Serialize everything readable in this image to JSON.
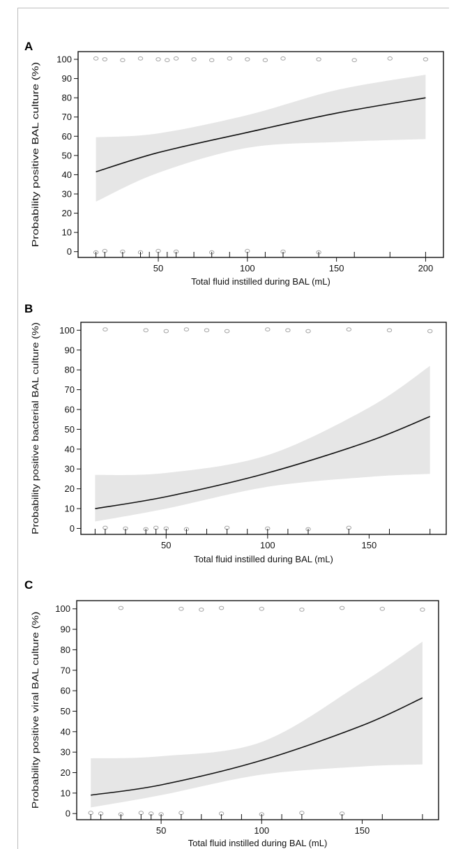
{
  "chart_data": [
    {
      "panel": "A",
      "type": "line",
      "ylabel": "Probability positive BAL culture (%)",
      "xlabel": "Total fluid instilled during BAL (mL)",
      "xlim": [
        5,
        210
      ],
      "ylim": [
        -3,
        104
      ],
      "xticks": [
        50,
        100,
        150,
        200
      ],
      "yticks": [
        0,
        10,
        20,
        30,
        40,
        50,
        60,
        70,
        80,
        90,
        100
      ],
      "rug_x": [
        15,
        20,
        30,
        40,
        45,
        50,
        55,
        60,
        70,
        80,
        90,
        100,
        110,
        120,
        140,
        160,
        180,
        200
      ],
      "fit": {
        "x": [
          15,
          50,
          100,
          150,
          200
        ],
        "y": [
          41.5,
          51.5,
          62,
          72,
          80
        ]
      },
      "ci_upper": {
        "x": [
          15,
          50,
          100,
          150,
          200
        ],
        "y": [
          59.5,
          61.5,
          71,
          84,
          92
        ]
      },
      "ci_lower": {
        "x": [
          15,
          50,
          100,
          150,
          200
        ],
        "y": [
          26,
          41,
          54,
          57,
          58.5
        ]
      },
      "observed": [
        {
          "x": 15,
          "y": 100
        },
        {
          "x": 20,
          "y": 100
        },
        {
          "x": 30,
          "y": 100
        },
        {
          "x": 40,
          "y": 100
        },
        {
          "x": 50,
          "y": 100
        },
        {
          "x": 55,
          "y": 100
        },
        {
          "x": 60,
          "y": 100
        },
        {
          "x": 70,
          "y": 100
        },
        {
          "x": 80,
          "y": 100
        },
        {
          "x": 90,
          "y": 100
        },
        {
          "x": 100,
          "y": 100
        },
        {
          "x": 110,
          "y": 100
        },
        {
          "x": 120,
          "y": 100
        },
        {
          "x": 140,
          "y": 100
        },
        {
          "x": 160,
          "y": 100
        },
        {
          "x": 180,
          "y": 100
        },
        {
          "x": 200,
          "y": 100
        },
        {
          "x": 15,
          "y": 0
        },
        {
          "x": 20,
          "y": 0
        },
        {
          "x": 30,
          "y": 0
        },
        {
          "x": 40,
          "y": 0
        },
        {
          "x": 50,
          "y": 0
        },
        {
          "x": 60,
          "y": 0
        },
        {
          "x": 80,
          "y": 0
        },
        {
          "x": 100,
          "y": 0
        },
        {
          "x": 120,
          "y": 0
        },
        {
          "x": 140,
          "y": 0
        }
      ]
    },
    {
      "panel": "B",
      "type": "line",
      "ylabel": "Probability positive bacterial BAL culture (%)",
      "xlabel": "Total fluid instilled during BAL (mL)",
      "xlim": [
        8,
        188
      ],
      "ylim": [
        -3,
        104
      ],
      "xticks": [
        50,
        100,
        150
      ],
      "yticks": [
        0,
        10,
        20,
        30,
        40,
        50,
        60,
        70,
        80,
        90,
        100
      ],
      "rug_x": [
        15,
        20,
        30,
        40,
        45,
        50,
        60,
        70,
        80,
        90,
        100,
        110,
        120,
        140,
        160,
        180
      ],
      "fit": {
        "x": [
          15,
          50,
          100,
          150,
          180
        ],
        "y": [
          10,
          16,
          28,
          44,
          56.5
        ]
      },
      "ci_upper": {
        "x": [
          15,
          50,
          100,
          150,
          180
        ],
        "y": [
          27,
          28,
          37,
          61,
          82
        ]
      },
      "ci_lower": {
        "x": [
          15,
          50,
          100,
          150,
          180
        ],
        "y": [
          3.5,
          10,
          21,
          26,
          27.5
        ]
      },
      "observed": [
        {
          "x": 20,
          "y": 100
        },
        {
          "x": 40,
          "y": 100
        },
        {
          "x": 50,
          "y": 100
        },
        {
          "x": 60,
          "y": 100
        },
        {
          "x": 70,
          "y": 100
        },
        {
          "x": 80,
          "y": 100
        },
        {
          "x": 100,
          "y": 100
        },
        {
          "x": 110,
          "y": 100
        },
        {
          "x": 120,
          "y": 100
        },
        {
          "x": 140,
          "y": 100
        },
        {
          "x": 160,
          "y": 100
        },
        {
          "x": 180,
          "y": 100
        },
        {
          "x": 20,
          "y": 0
        },
        {
          "x": 30,
          "y": 0
        },
        {
          "x": 40,
          "y": 0
        },
        {
          "x": 45,
          "y": 0
        },
        {
          "x": 50,
          "y": 0
        },
        {
          "x": 60,
          "y": 0
        },
        {
          "x": 80,
          "y": 0
        },
        {
          "x": 100,
          "y": 0
        },
        {
          "x": 120,
          "y": 0
        },
        {
          "x": 140,
          "y": 0
        }
      ]
    },
    {
      "panel": "C",
      "type": "line",
      "ylabel": "Probability positive viral BAL culture (%)",
      "xlabel": "Total fluid instilled during BAL (mL)",
      "xlim": [
        8,
        188
      ],
      "ylim": [
        -3,
        104
      ],
      "xticks": [
        50,
        100,
        150
      ],
      "yticks": [
        0,
        10,
        20,
        30,
        40,
        50,
        60,
        70,
        80,
        90,
        100
      ],
      "rug_x": [
        15,
        20,
        30,
        40,
        45,
        50,
        60,
        70,
        80,
        90,
        100,
        110,
        120,
        140,
        160,
        180
      ],
      "fit": {
        "x": [
          15,
          50,
          100,
          150,
          180
        ],
        "y": [
          9,
          14,
          26,
          43,
          56.5
        ]
      },
      "ci_upper": {
        "x": [
          15,
          50,
          100,
          150,
          180
        ],
        "y": [
          27,
          28,
          35,
          64,
          84
        ]
      },
      "ci_lower": {
        "x": [
          15,
          50,
          100,
          150,
          180
        ],
        "y": [
          3,
          9,
          19,
          23,
          24
        ]
      },
      "observed": [
        {
          "x": 30,
          "y": 100
        },
        {
          "x": 60,
          "y": 100
        },
        {
          "x": 70,
          "y": 100
        },
        {
          "x": 80,
          "y": 100
        },
        {
          "x": 100,
          "y": 100
        },
        {
          "x": 120,
          "y": 100
        },
        {
          "x": 140,
          "y": 100
        },
        {
          "x": 160,
          "y": 100
        },
        {
          "x": 180,
          "y": 100
        },
        {
          "x": 15,
          "y": 0
        },
        {
          "x": 20,
          "y": 0
        },
        {
          "x": 30,
          "y": 0
        },
        {
          "x": 40,
          "y": 0
        },
        {
          "x": 45,
          "y": 0
        },
        {
          "x": 50,
          "y": 0
        },
        {
          "x": 60,
          "y": 0
        },
        {
          "x": 80,
          "y": 0
        },
        {
          "x": 100,
          "y": 0
        },
        {
          "x": 120,
          "y": 0
        },
        {
          "x": 140,
          "y": 0
        }
      ]
    }
  ],
  "colors": {
    "line": "#111111",
    "ci_band": "#e6e6e6",
    "points": "#7a7a7a",
    "frame": "#111111"
  }
}
